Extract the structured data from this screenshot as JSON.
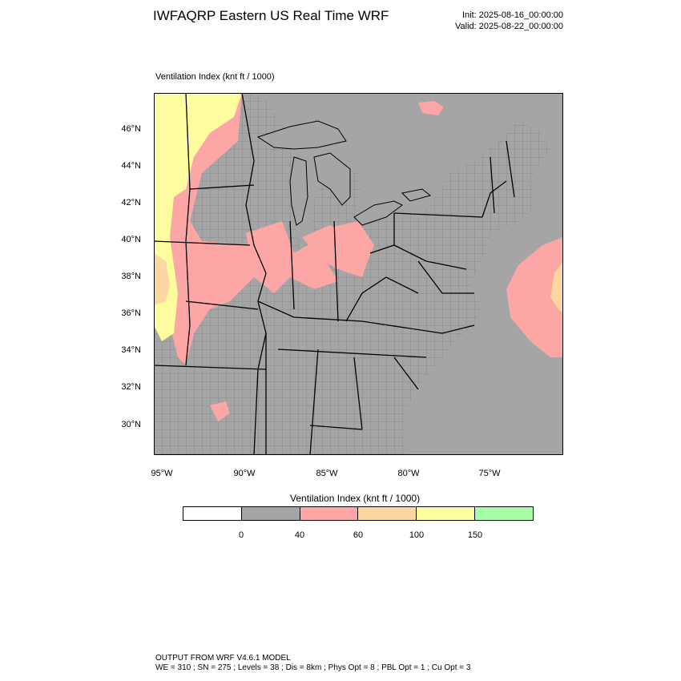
{
  "header": {
    "title": "IWFAQRP Eastern US Real Time WRF",
    "init": "Init: 2025-08-16_00:00:00",
    "valid": "Valid: 2025-08-22_00:00:00"
  },
  "map": {
    "variable_label": "Ventilation Index   (knt ft / 1000)",
    "lat_labels": [
      "46°N",
      "44°N",
      "42°N",
      "40°N",
      "38°N",
      "36°N",
      "34°N",
      "32°N",
      "30°N"
    ],
    "lon_labels": [
      "95°W",
      "90°W",
      "85°W",
      "80°W",
      "75°W"
    ],
    "colors": {
      "water": "#a5a5a5",
      "land_low": "#a5a5a5",
      "pink": "#fda6a6",
      "orange": "#fcd8a0",
      "yellow": "#fdfc9e",
      "green": "#a6fda6",
      "border": "#000000"
    }
  },
  "colorbar": {
    "title": "Ventilation Index  (knt ft / 1000)",
    "bins": [
      "#ffffff",
      "#a5a5a5",
      "#fda6a6",
      "#fcd8a0",
      "#fdfc9e",
      "#a6fda6"
    ],
    "ticks": [
      "0",
      "40",
      "60",
      "100",
      "150"
    ]
  },
  "footer": {
    "line1": "OUTPUT FROM WRF V4.6.1 MODEL",
    "line2": "WE = 310 ; SN = 275 ; Levels = 38 ; Dis = 8km ; Phys Opt = 8 ; PBL Opt = 1 ; Cu Opt = 3"
  }
}
